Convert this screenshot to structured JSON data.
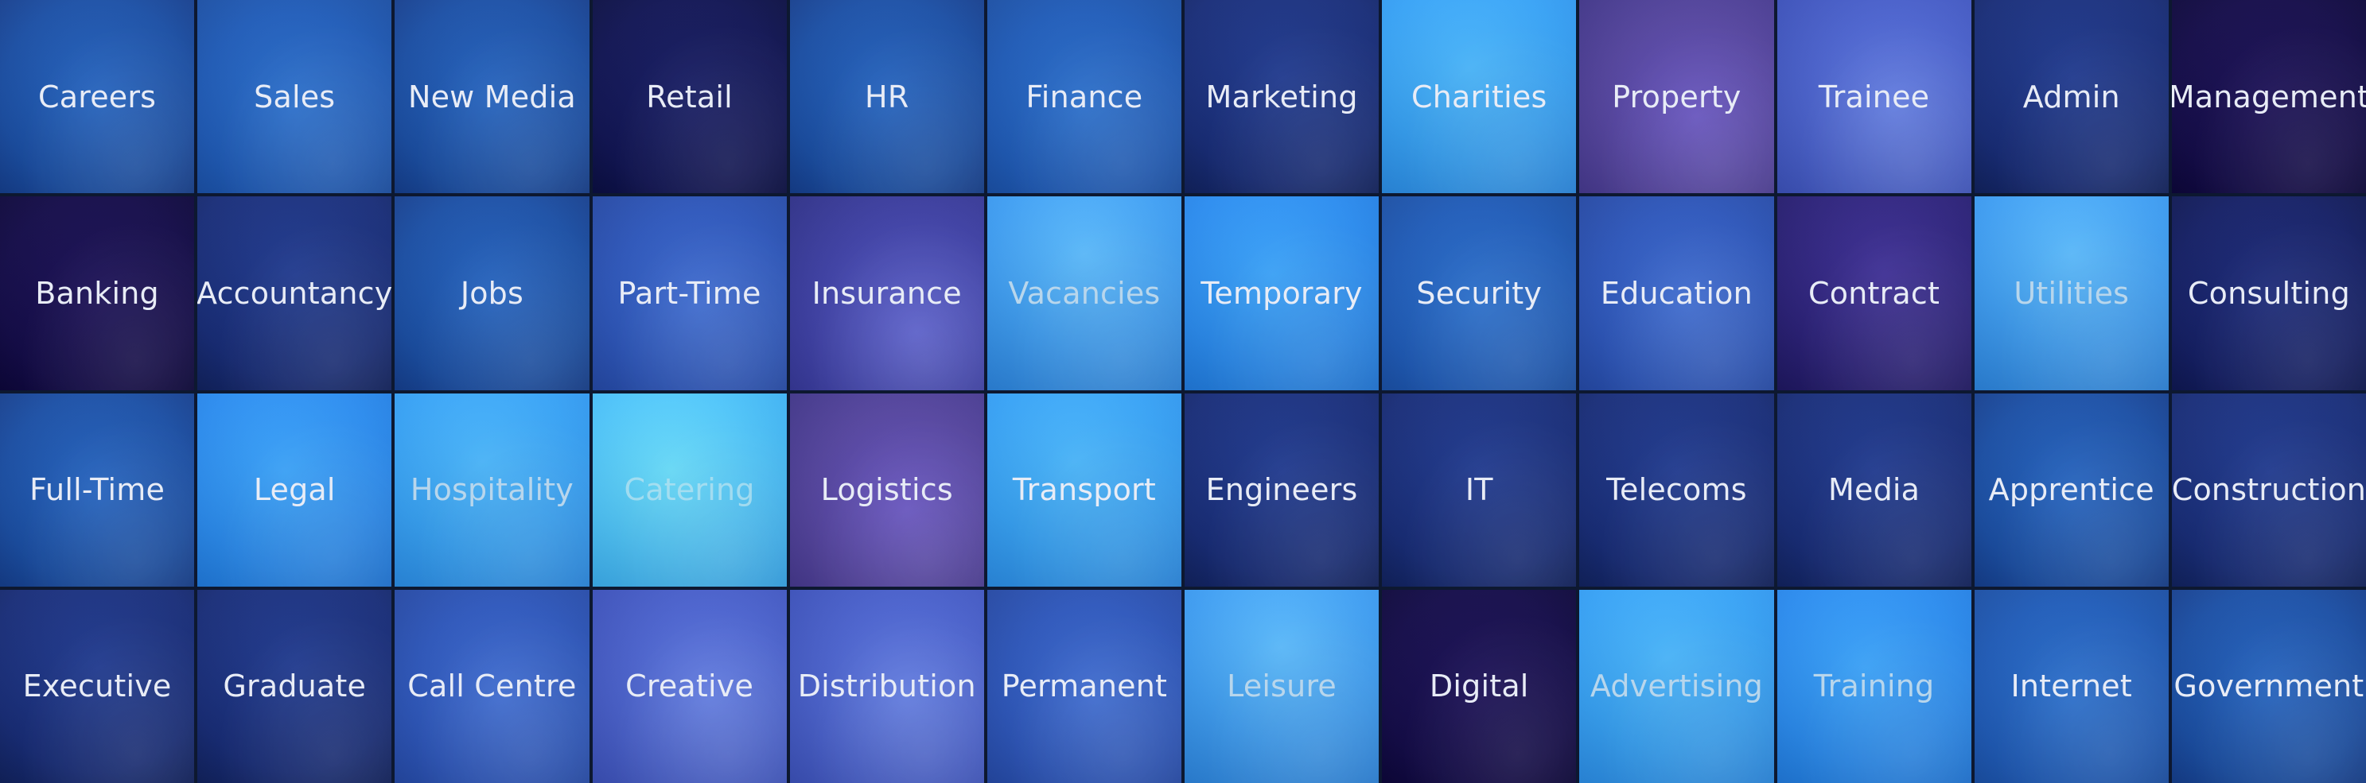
{
  "tiles": [
    {
      "label": "Careers"
    },
    {
      "label": "Sales"
    },
    {
      "label": "New Media"
    },
    {
      "label": "Retail"
    },
    {
      "label": "HR"
    },
    {
      "label": "Finance"
    },
    {
      "label": "Marketing"
    },
    {
      "label": "Charities"
    },
    {
      "label": "Property"
    },
    {
      "label": "Trainee"
    },
    {
      "label": "Admin"
    },
    {
      "label": "Management"
    },
    {
      "label": "Banking"
    },
    {
      "label": "Accountancy"
    },
    {
      "label": "Jobs"
    },
    {
      "label": "Part-Time"
    },
    {
      "label": "Insurance"
    },
    {
      "label": "Vacancies"
    },
    {
      "label": "Temporary"
    },
    {
      "label": "Security"
    },
    {
      "label": "Education"
    },
    {
      "label": "Contract"
    },
    {
      "label": "Utilities"
    },
    {
      "label": "Consulting"
    },
    {
      "label": "Full-Time"
    },
    {
      "label": "Legal"
    },
    {
      "label": "Hospitality"
    },
    {
      "label": "Catering"
    },
    {
      "label": "Logistics"
    },
    {
      "label": "Transport"
    },
    {
      "label": "Engineers"
    },
    {
      "label": "IT"
    },
    {
      "label": "Telecoms"
    },
    {
      "label": "Media"
    },
    {
      "label": "Apprentice"
    },
    {
      "label": "Construction"
    },
    {
      "label": "Executive"
    },
    {
      "label": "Graduate"
    },
    {
      "label": "Call Centre"
    },
    {
      "label": "Creative"
    },
    {
      "label": "Distribution"
    },
    {
      "label": "Permanent"
    },
    {
      "label": "Leisure"
    },
    {
      "label": "Digital"
    },
    {
      "label": "Advertising"
    },
    {
      "label": "Training"
    },
    {
      "label": "Internet"
    },
    {
      "label": "Government"
    }
  ]
}
